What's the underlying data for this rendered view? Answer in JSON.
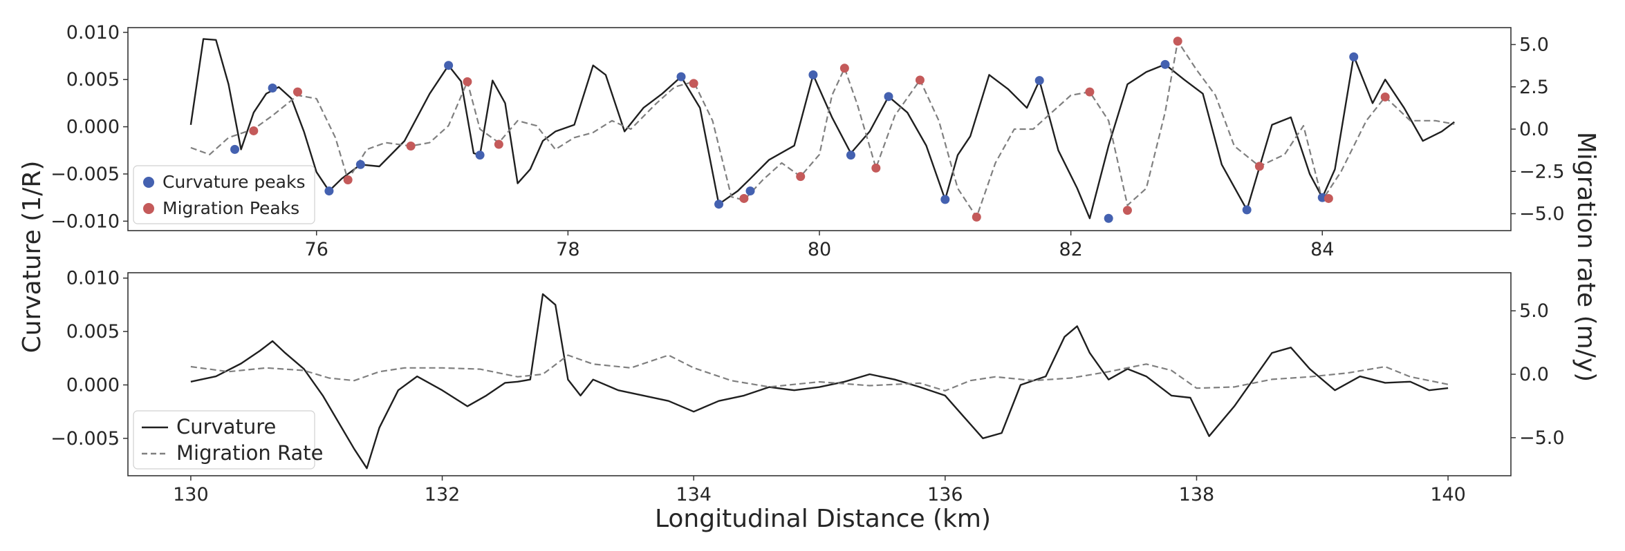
{
  "figure": {
    "y_label_left": "Curvature (1/R)",
    "y_label_right": "Migration rate (m/y)",
    "x_label": "Longitudinal Distance (km)"
  },
  "colors": {
    "curvature_line": "#1f1f1f",
    "migration_line": "#7f7f7f",
    "curvature_peaks": "#4461b0",
    "migration_peaks": "#c45a5a"
  },
  "chart_data": [
    {
      "type": "line",
      "panel": "top",
      "xlim": [
        74.5,
        85.5
      ],
      "ylim_left": [
        -0.011,
        0.0105
      ],
      "ylim_right": [
        -6.0,
        6.0
      ],
      "xticks": [
        76,
        78,
        80,
        82,
        84
      ],
      "yticks_left": [
        -0.01,
        -0.005,
        0.0,
        0.005,
        0.01
      ],
      "ytick_labels_left": [
        "−0.010",
        "−0.005",
        "0.000",
        "0.005",
        "0.010"
      ],
      "yticks_right": [
        -5.0,
        -2.5,
        0.0,
        2.5,
        5.0
      ],
      "ytick_labels_right": [
        "−5.0",
        "−2.5",
        "0.0",
        "2.5",
        "5.0"
      ],
      "legend_position": "lower-left",
      "series": [
        {
          "name": "Curvature",
          "axis": "left",
          "style": "solid",
          "x": [
            75.0,
            75.1,
            75.2,
            75.3,
            75.4,
            75.5,
            75.6,
            75.7,
            75.8,
            75.9,
            76.0,
            76.1,
            76.2,
            76.35,
            76.5,
            76.7,
            76.9,
            77.05,
            77.15,
            77.25,
            77.3,
            77.4,
            77.5,
            77.6,
            77.7,
            77.8,
            77.9,
            78.05,
            78.2,
            78.3,
            78.45,
            78.6,
            78.75,
            78.9,
            79.05,
            79.2,
            79.35,
            79.45,
            79.6,
            79.8,
            79.95,
            80.1,
            80.25,
            80.4,
            80.55,
            80.7,
            80.85,
            81.0,
            81.1,
            81.2,
            81.35,
            81.5,
            81.65,
            81.75,
            81.9,
            82.05,
            82.15,
            82.3,
            82.45,
            82.6,
            82.75,
            82.9,
            83.05,
            83.2,
            83.4,
            83.6,
            83.75,
            83.9,
            84.0,
            84.1,
            84.25,
            84.4,
            84.5,
            84.65,
            84.8,
            84.95,
            85.05
          ],
          "y": [
            0.0002,
            0.0093,
            0.0092,
            0.0045,
            -0.0024,
            0.0015,
            0.0035,
            0.0042,
            0.003,
            -0.0005,
            -0.0048,
            -0.0068,
            -0.0055,
            -0.004,
            -0.0042,
            -0.0015,
            0.0035,
            0.0065,
            0.0048,
            -0.0028,
            -0.003,
            0.0049,
            0.0025,
            -0.006,
            -0.0045,
            -0.0015,
            -0.0005,
            0.0002,
            0.0065,
            0.0055,
            -0.0005,
            0.002,
            0.0035,
            0.0053,
            0.002,
            -0.0082,
            -0.0068,
            -0.0055,
            -0.0035,
            -0.002,
            0.0055,
            0.001,
            -0.0028,
            -0.0005,
            0.0032,
            0.0015,
            -0.002,
            -0.0077,
            -0.003,
            -0.001,
            0.0055,
            0.004,
            0.002,
            0.0049,
            -0.0025,
            -0.0065,
            -0.0097,
            -0.002,
            0.0045,
            0.0058,
            0.0066,
            0.005,
            0.0035,
            -0.004,
            -0.0088,
            0.0002,
            0.001,
            -0.005,
            -0.0075,
            -0.0045,
            0.0075,
            0.0025,
            0.005,
            0.002,
            -0.0015,
            -0.0005,
            0.0005
          ]
        },
        {
          "name": "Migration rate",
          "axis": "right",
          "style": "dashed",
          "x": [
            75.0,
            75.15,
            75.3,
            75.5,
            75.65,
            75.85,
            76.0,
            76.15,
            76.25,
            76.4,
            76.55,
            76.75,
            76.9,
            77.05,
            77.2,
            77.3,
            77.45,
            77.6,
            77.75,
            77.9,
            78.05,
            78.2,
            78.35,
            78.5,
            78.7,
            78.85,
            79.0,
            79.15,
            79.3,
            79.4,
            79.55,
            79.7,
            79.85,
            80.0,
            80.1,
            80.2,
            80.3,
            80.45,
            80.6,
            80.8,
            80.95,
            81.1,
            81.25,
            81.4,
            81.55,
            81.7,
            81.85,
            82.0,
            82.15,
            82.3,
            82.45,
            82.6,
            82.75,
            82.85,
            83.0,
            83.15,
            83.3,
            83.5,
            83.7,
            83.85,
            84.0,
            84.15,
            84.35,
            84.5,
            84.7,
            84.9,
            85.05
          ],
          "y": [
            -1.1,
            -1.5,
            -0.5,
            0.0,
            0.8,
            2.0,
            1.8,
            -0.5,
            -3.0,
            -1.2,
            -0.8,
            -1.0,
            -0.8,
            0.2,
            2.8,
            0.0,
            -0.8,
            0.5,
            0.2,
            -1.2,
            -0.5,
            -0.2,
            0.5,
            0.0,
            1.5,
            2.5,
            2.8,
            0.5,
            -4.0,
            -4.2,
            -3.0,
            -2.0,
            -2.8,
            -1.5,
            2.0,
            3.6,
            1.5,
            -2.3,
            0.8,
            2.9,
            0.5,
            -3.5,
            -5.2,
            -2.0,
            0.0,
            0.0,
            1.0,
            2.0,
            2.2,
            0.5,
            -4.5,
            -3.5,
            1.0,
            5.2,
            3.5,
            2.0,
            -1.0,
            -2.2,
            -1.5,
            0.2,
            -4.2,
            -2.5,
            0.5,
            1.9,
            0.5,
            0.5,
            0.3
          ]
        }
      ],
      "markers": [
        {
          "name": "Curvature peaks",
          "axis": "left",
          "x": [
            75.35,
            75.65,
            76.1,
            76.35,
            77.05,
            77.3,
            78.9,
            79.2,
            79.45,
            79.95,
            80.25,
            80.55,
            81.0,
            81.75,
            82.3,
            82.75,
            83.4,
            84.0,
            84.25
          ],
          "y": [
            -0.0024,
            0.0041,
            -0.0068,
            -0.004,
            0.0065,
            -0.003,
            0.0053,
            -0.0082,
            -0.0068,
            0.0055,
            -0.003,
            0.0032,
            -0.0077,
            0.0049,
            -0.0097,
            0.0066,
            -0.0088,
            -0.0075,
            0.0074
          ]
        },
        {
          "name": "Migration Peaks",
          "axis": "right",
          "x": [
            75.5,
            75.85,
            76.25,
            76.75,
            77.2,
            77.45,
            79.0,
            79.4,
            79.85,
            80.2,
            80.45,
            80.8,
            81.25,
            82.15,
            82.45,
            82.85,
            83.5,
            84.05,
            84.5
          ],
          "y": [
            -0.1,
            2.2,
            -3.0,
            -1.0,
            2.8,
            -0.9,
            2.7,
            -4.1,
            -2.8,
            3.6,
            -2.3,
            2.9,
            -5.2,
            2.2,
            -4.8,
            5.2,
            -2.2,
            -4.1,
            1.9
          ]
        }
      ],
      "legend": [
        "Curvature peaks",
        "Migration Peaks"
      ]
    },
    {
      "type": "line",
      "panel": "bottom",
      "xlim": [
        129.5,
        140.5
      ],
      "ylim_left": [
        -0.0085,
        0.0105
      ],
      "ylim_right": [
        -8.0,
        8.0
      ],
      "xticks": [
        130,
        132,
        134,
        136,
        138,
        140
      ],
      "yticks_left": [
        -0.005,
        0.0,
        0.005,
        0.01
      ],
      "ytick_labels_left": [
        "−0.005",
        "0.000",
        "0.005",
        "0.010"
      ],
      "yticks_right": [
        -5.0,
        0.0,
        5.0
      ],
      "ytick_labels_right": [
        "−5.0",
        "0.0",
        "5.0"
      ],
      "legend_position": "lower-left",
      "series": [
        {
          "name": "Curvature",
          "axis": "left",
          "style": "solid",
          "x": [
            130.0,
            130.2,
            130.4,
            130.55,
            130.65,
            130.75,
            130.9,
            131.05,
            131.2,
            131.3,
            131.4,
            131.5,
            131.65,
            131.8,
            132.0,
            132.2,
            132.35,
            132.5,
            132.6,
            132.7,
            132.8,
            132.9,
            133.0,
            133.1,
            133.2,
            133.4,
            133.6,
            133.8,
            134.0,
            134.2,
            134.4,
            134.6,
            134.8,
            135.0,
            135.2,
            135.4,
            135.6,
            135.8,
            136.0,
            136.15,
            136.3,
            136.45,
            136.6,
            136.8,
            136.95,
            137.05,
            137.15,
            137.3,
            137.45,
            137.6,
            137.8,
            137.95,
            138.1,
            138.3,
            138.45,
            138.6,
            138.75,
            138.9,
            139.1,
            139.3,
            139.5,
            139.7,
            139.85,
            140.0
          ],
          "y": [
            0.0003,
            0.0008,
            0.002,
            0.0032,
            0.0041,
            0.003,
            0.0015,
            -0.001,
            -0.004,
            -0.006,
            -0.0078,
            -0.004,
            -0.0005,
            0.0008,
            -0.0005,
            -0.002,
            -0.001,
            0.0002,
            0.0003,
            0.0005,
            0.0085,
            0.0075,
            0.0005,
            -0.001,
            0.0005,
            -0.0005,
            -0.001,
            -0.0015,
            -0.0025,
            -0.0015,
            -0.001,
            -0.0002,
            -0.0005,
            -0.0002,
            0.0003,
            0.001,
            0.0005,
            -0.0002,
            -0.001,
            -0.003,
            -0.005,
            -0.0045,
            0.0,
            0.0008,
            0.0045,
            0.0055,
            0.003,
            0.0005,
            0.0015,
            0.0008,
            -0.001,
            -0.0012,
            -0.0048,
            -0.002,
            0.0005,
            0.003,
            0.0035,
            0.0015,
            -0.0005,
            0.0008,
            0.0002,
            0.0003,
            -0.0005,
            -0.0003
          ]
        },
        {
          "name": "Migration Rate",
          "axis": "right",
          "style": "dashed",
          "x": [
            130.0,
            130.3,
            130.6,
            130.9,
            131.1,
            131.3,
            131.5,
            131.7,
            132.0,
            132.3,
            132.6,
            132.8,
            133.0,
            133.2,
            133.5,
            133.8,
            134.0,
            134.3,
            134.6,
            135.0,
            135.4,
            135.8,
            136.0,
            136.2,
            136.4,
            136.7,
            137.0,
            137.3,
            137.6,
            137.8,
            138.0,
            138.3,
            138.6,
            138.9,
            139.2,
            139.5,
            139.7,
            140.0
          ],
          "y": [
            0.6,
            0.2,
            0.5,
            0.3,
            -0.3,
            -0.5,
            0.2,
            0.5,
            0.5,
            0.4,
            -0.2,
            0.0,
            1.5,
            0.8,
            0.5,
            1.5,
            0.5,
            -0.5,
            -1.0,
            -0.6,
            -0.9,
            -0.7,
            -1.3,
            -0.5,
            -0.2,
            -0.5,
            -0.3,
            0.2,
            0.8,
            0.3,
            -1.1,
            -1.0,
            -0.4,
            -0.2,
            0.1,
            0.6,
            -0.2,
            -0.8
          ]
        }
      ],
      "legend": [
        "Curvature",
        "Migration Rate"
      ]
    }
  ]
}
